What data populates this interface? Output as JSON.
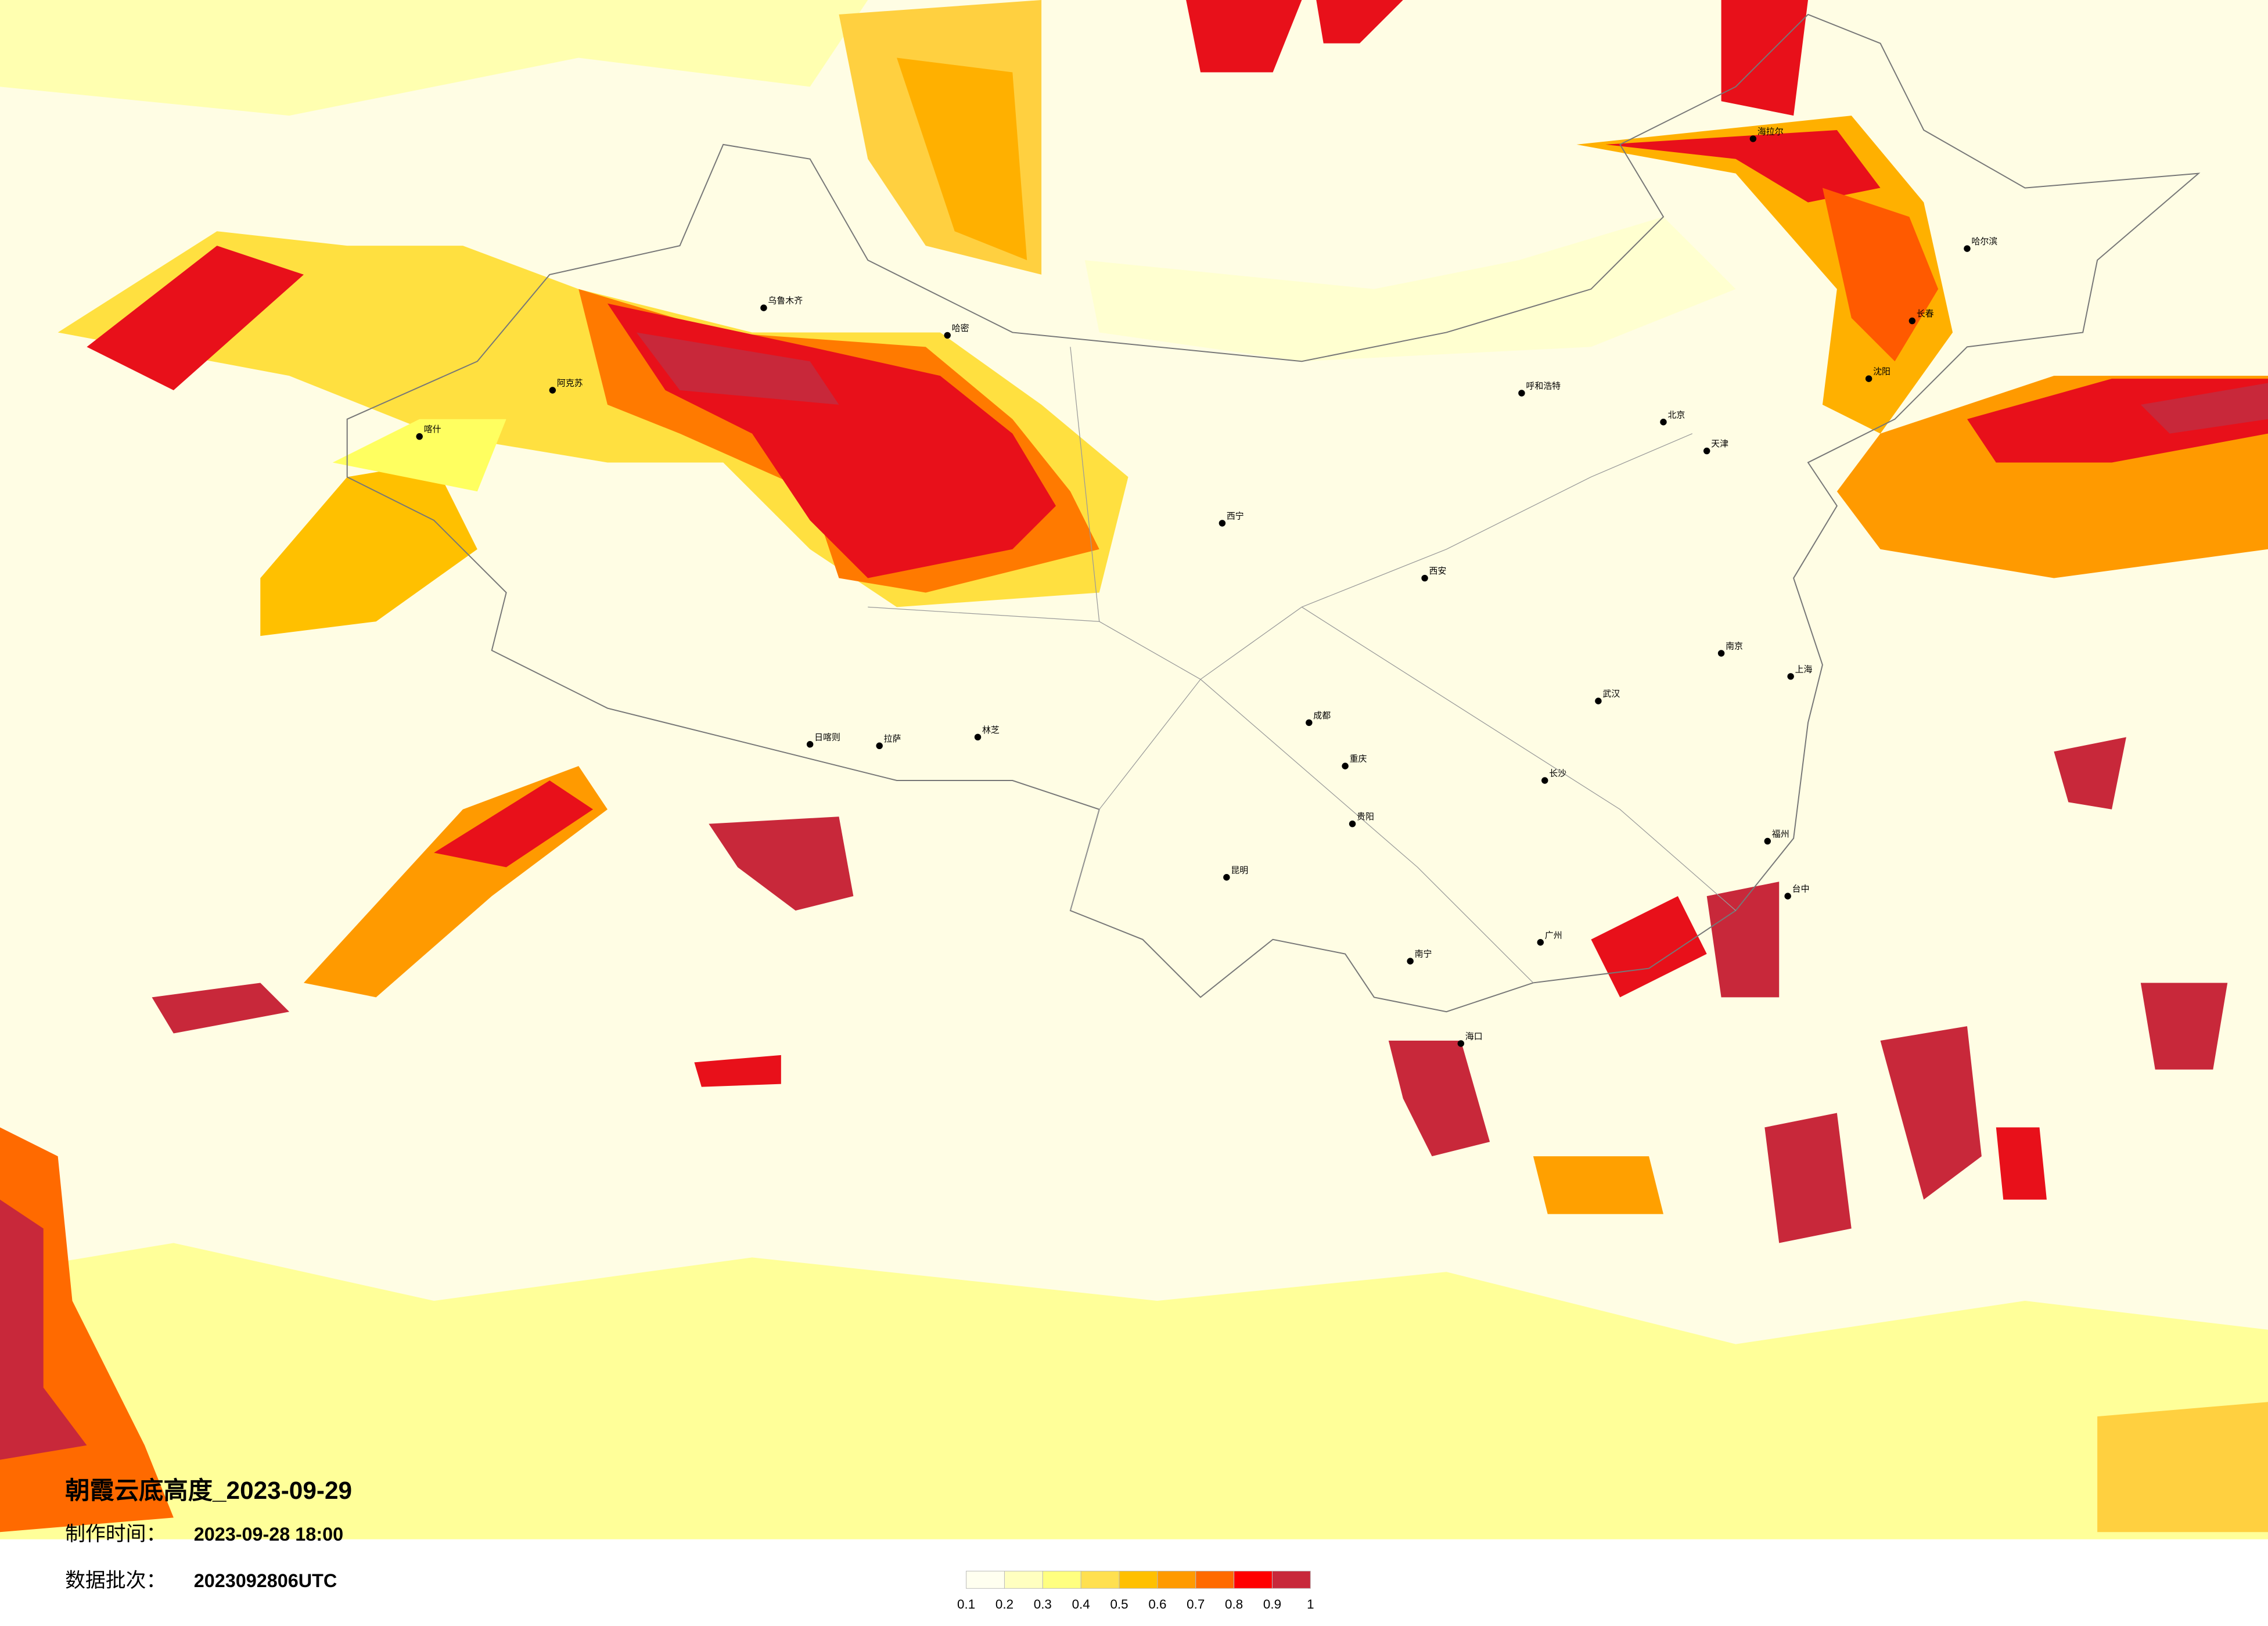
{
  "title": "朝霞云底高度_2023-09-29",
  "production_time": {
    "label": "制作时间：",
    "value": "2023-09-28 18:00"
  },
  "batch": {
    "label": "数据批次：",
    "value": "2023092806UTC"
  },
  "legend": {
    "colors": [
      "#fffff0",
      "#ffffc0",
      "#ffff80",
      "#ffe050",
      "#ffc000",
      "#ff9a00",
      "#ff6a00",
      "#ff0000",
      "#c8283a"
    ],
    "ticks": [
      0.1,
      0.2,
      0.3,
      0.4,
      0.5,
      0.6,
      0.7,
      0.8,
      0.9,
      1
    ]
  },
  "cities": [
    "乌鲁木齐",
    "哈密",
    "阿克苏",
    "喀什",
    "日喀则",
    "拉萨",
    "林芝",
    "西宁",
    "成都",
    "重庆",
    "昆明",
    "贵阳",
    "南宁",
    "广州",
    "长沙",
    "武汉",
    "西安",
    "北京",
    "天津",
    "南京",
    "上海",
    "福州",
    "台中",
    "海口",
    "沈阳",
    "长春",
    "哈尔滨",
    "呼和浩特",
    "海拉尔"
  ]
}
